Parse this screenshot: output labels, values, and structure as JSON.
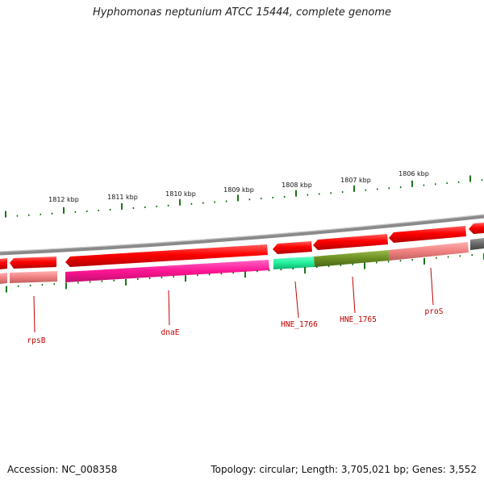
{
  "title": "Hyphomonas neptunium ATCC 15444, complete genome",
  "footer": {
    "accession": "Accession: NC_008358",
    "summary": "Topology: circular; Length: 3,705,021 bp; Genes: 3,552"
  },
  "ruler": {
    "labels": [
      "1812 kbp",
      "1811 kbp",
      "1810 kbp",
      "1809 kbp",
      "1808 kbp",
      "1807 kbp",
      "1806 kbp"
    ]
  },
  "genes": {
    "labels": [
      "rpsB",
      "dnaE",
      "HNE_1766",
      "HNE_1765",
      "proS"
    ]
  },
  "colors": {
    "backbone": "#8a8a8a",
    "strand_red": "#ff0000",
    "dnaE": "#ff1493",
    "hne1766": "#22ee99",
    "hne1765": "#6b8e23",
    "pros_pink": "#f08080",
    "gray_feature": "#666666",
    "tick_green": "#006400",
    "label_red": "#c00000"
  }
}
